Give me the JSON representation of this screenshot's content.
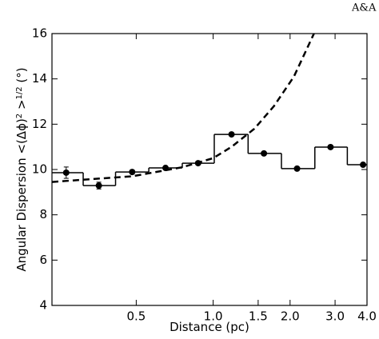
{
  "header": "A&A",
  "chart_data": {
    "type": "step-scatter",
    "xlabel": "Distance (pc)",
    "ylabel_parts": [
      "Angular Dispersion <(Δϕ)",
      "2",
      " >",
      "1/2",
      " (°)"
    ],
    "xscale": "log",
    "xlim": [
      0.234,
      4.0
    ],
    "ylim": [
      4,
      16
    ],
    "xticks": [
      0.5,
      {
        "value": 1.0,
        "label": "1.0"
      },
      1.5,
      {
        "value": 2.0,
        "label": "2.0"
      },
      {
        "value": 3.0,
        "label": "3.0"
      },
      {
        "value": 4.0,
        "label": "4.0"
      }
    ],
    "yticks": [
      4,
      6,
      8,
      10,
      12,
      14,
      16
    ],
    "color": "#000000",
    "bins": [
      0.234,
      0.31,
      0.415,
      0.56,
      0.757,
      1.01,
      1.37,
      1.85,
      2.5,
      3.35,
      4.0
    ],
    "x": [
      0.266,
      0.357,
      0.482,
      0.651,
      0.873,
      1.18,
      1.58,
      2.13,
      2.88,
      3.86
    ],
    "values": [
      9.86,
      9.29,
      9.89,
      10.07,
      10.28,
      11.55,
      10.71,
      10.04,
      10.99,
      10.21
    ],
    "errors": [
      0.25,
      0.15,
      0.08,
      0.08,
      0.06,
      0.06,
      0.06,
      0.06,
      0.06,
      0.06
    ],
    "model": {
      "x": [
        0.234,
        0.31,
        0.482,
        0.757,
        1.0,
        1.18,
        1.45,
        1.73,
        2.07,
        2.48
      ],
      "values": [
        9.45,
        9.55,
        9.7,
        10.1,
        10.5,
        11.0,
        11.8,
        12.8,
        14.1,
        16.0
      ]
    }
  }
}
